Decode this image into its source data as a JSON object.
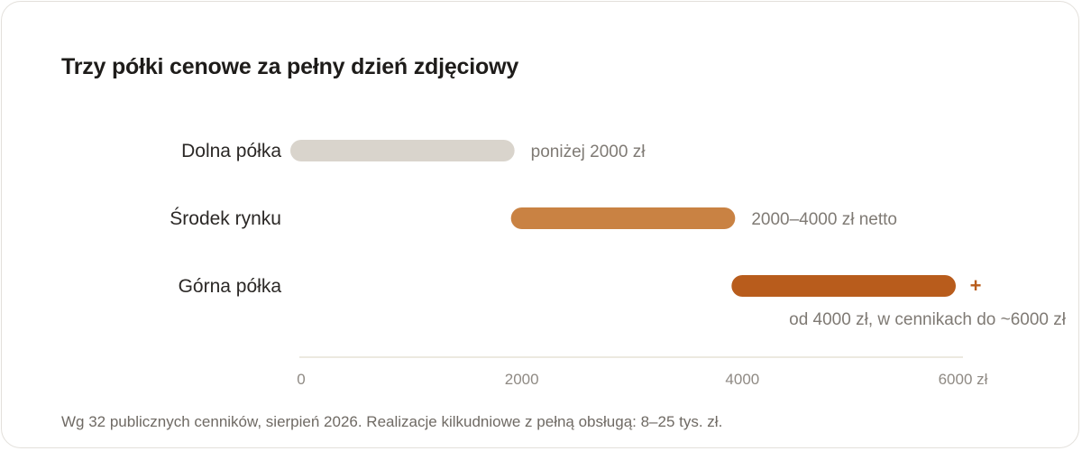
{
  "title": "Trzy półki cenowe za pełny dzień zdjęciowy",
  "footnote": "Wg 32 publicznych cenników, sierpień 2026. Realizacje kilkudniowe z pełną obsługą: 8–25 tys. zł.",
  "chart_data": {
    "type": "bar",
    "orientation": "horizontal-range",
    "title": "Trzy półki cenowe za pełny dzień zdjęciowy",
    "xlim": [
      0,
      6000
    ],
    "ticks": [
      {
        "value": 0,
        "label": "0"
      },
      {
        "value": 2000,
        "label": "2000"
      },
      {
        "value": 4000,
        "label": "4000"
      },
      {
        "value": 6000,
        "label": "6000 zł"
      }
    ],
    "categories": [
      "Dolna półka",
      "Środek rynku",
      "Górna półka"
    ],
    "bars": [
      {
        "name": "Dolna półka",
        "start": 0,
        "end": 2000,
        "label": "poniżej 2000 zł",
        "color": "#d9d4cc",
        "open_ended": false
      },
      {
        "name": "Środek rynku",
        "start": 2000,
        "end": 4000,
        "label": "2000–4000 zł netto",
        "color": "#c98243",
        "open_ended": false
      },
      {
        "name": "Górna półka",
        "start": 4000,
        "end": 6000,
        "label": "od 4000 zł, w cennikach do ~6000 zł",
        "color": "#b85c1c",
        "open_ended": true,
        "extra_marker": "+"
      }
    ],
    "grid": false,
    "axis_color": "#e6e2d6"
  }
}
